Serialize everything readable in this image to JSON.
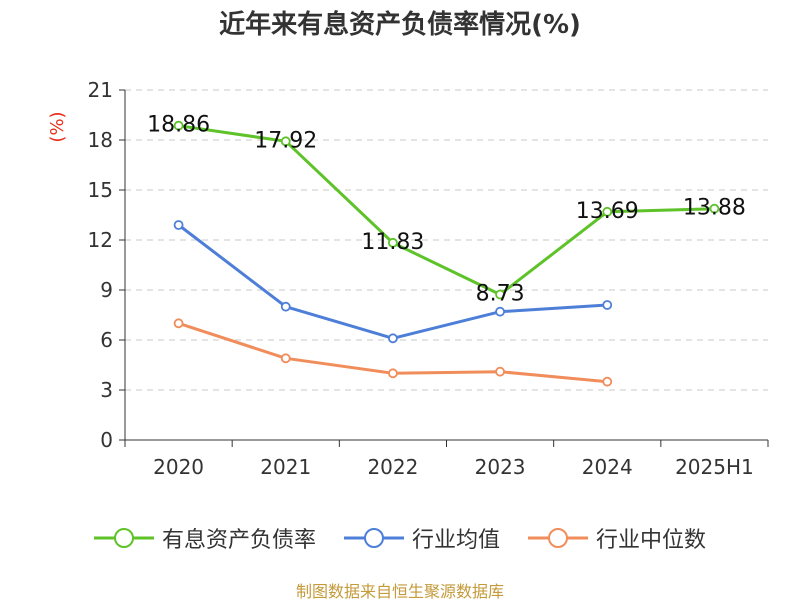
{
  "chart_data": {
    "type": "line",
    "title": "近年来有息资产负债率情况(%)",
    "ylabel": "(%)",
    "xlabel": "",
    "categories": [
      "2020",
      "2021",
      "2022",
      "2023",
      "2024",
      "2025H1"
    ],
    "ylim": [
      0,
      21
    ],
    "yticks": [
      0,
      3,
      6,
      9,
      12,
      15,
      18,
      21
    ],
    "grid": true,
    "legend_position": "bottom",
    "series": [
      {
        "name": "有息资产负债率",
        "color": "#5ec229",
        "values": [
          18.86,
          17.92,
          11.83,
          8.73,
          13.69,
          13.88
        ],
        "labels": [
          "18.86",
          "17.92",
          "11.83",
          "8.73",
          "13.69",
          "13.88"
        ],
        "show_labels": true
      },
      {
        "name": "行业均值",
        "color": "#4e7fd8",
        "values": [
          12.9,
          8.0,
          6.1,
          7.7,
          8.1,
          null
        ],
        "show_labels": false
      },
      {
        "name": "行业中位数",
        "color": "#f18d5b",
        "values": [
          7.0,
          4.9,
          4.0,
          4.1,
          3.5,
          null
        ],
        "show_labels": false
      }
    ]
  },
  "source": "制图数据来自恒生聚源数据库"
}
